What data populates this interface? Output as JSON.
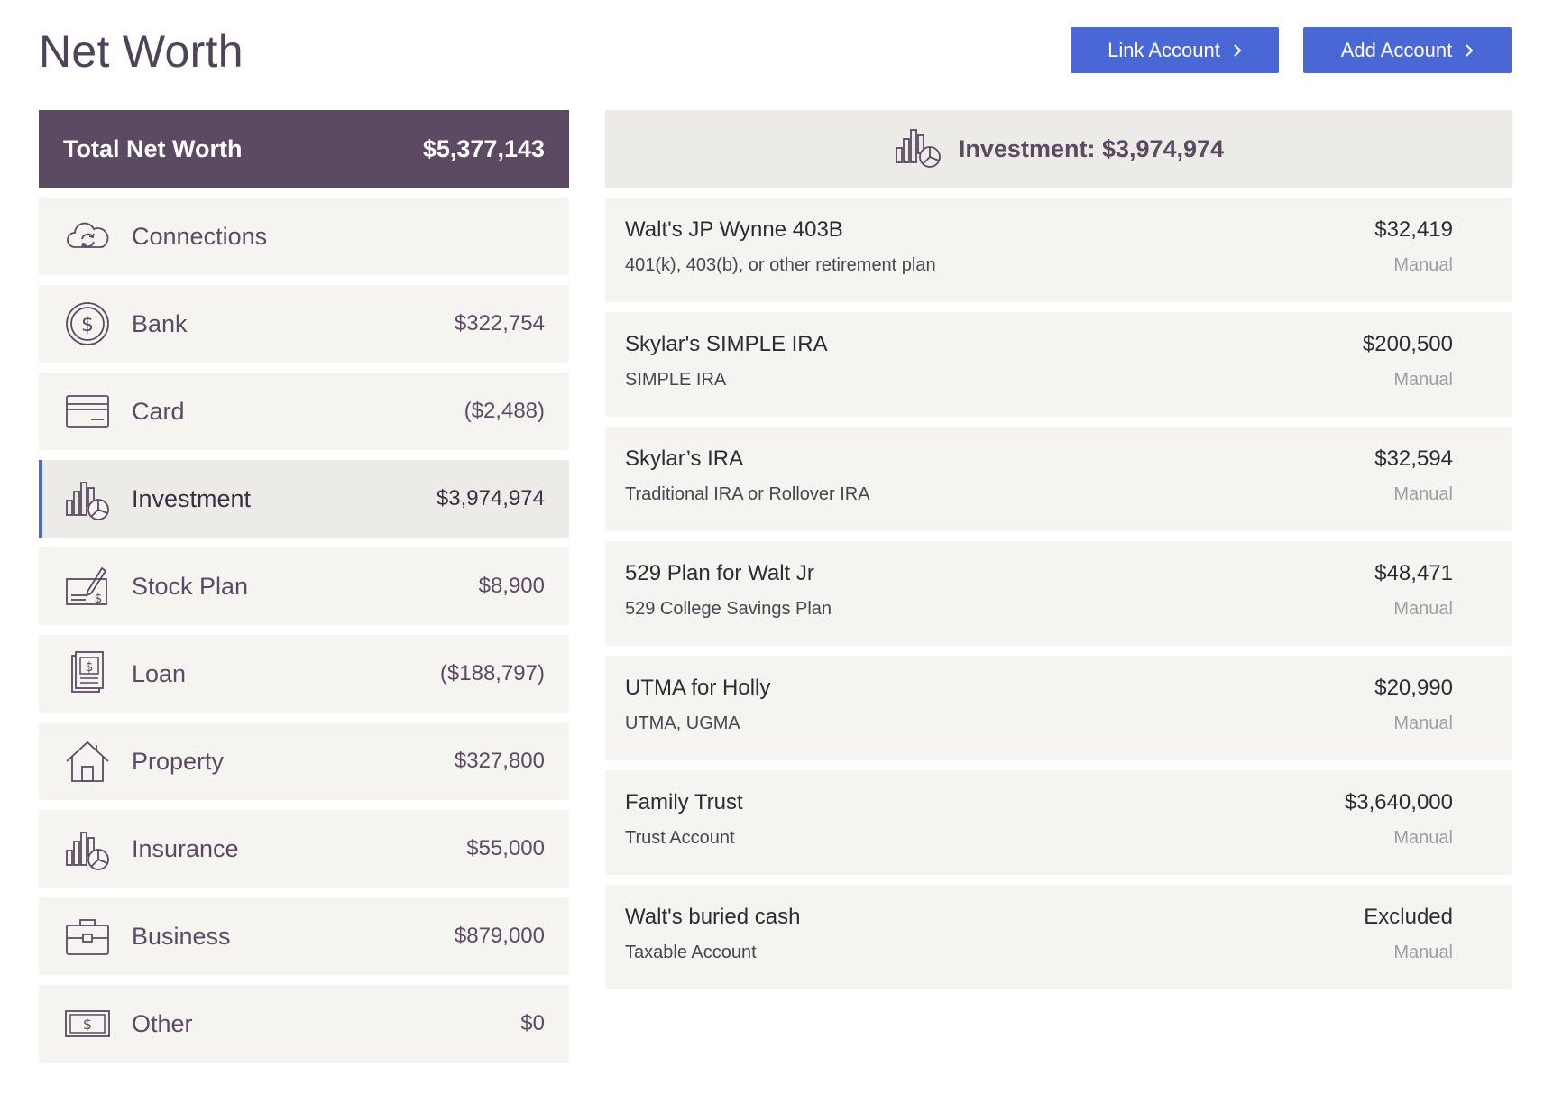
{
  "page": {
    "title": "Net Worth"
  },
  "actions": {
    "link_label": "Link Account",
    "add_label": "Add Account"
  },
  "total": {
    "label": "Total Net Worth",
    "value": "$5,377,143"
  },
  "categories": [
    {
      "label": "Connections",
      "value": "",
      "icon": "cloud-sync-icon"
    },
    {
      "label": "Bank",
      "value": "$322,754",
      "icon": "dollar-coin-icon"
    },
    {
      "label": "Card",
      "value": "($2,488)",
      "icon": "credit-card-icon"
    },
    {
      "label": "Investment",
      "value": "$3,974,974",
      "icon": "bar-pie-chart-icon",
      "active": true
    },
    {
      "label": "Stock Plan",
      "value": "$8,900",
      "icon": "signed-check-icon"
    },
    {
      "label": "Loan",
      "value": "($188,797)",
      "icon": "loan-document-icon"
    },
    {
      "label": "Property",
      "value": "$327,800",
      "icon": "house-icon"
    },
    {
      "label": "Insurance",
      "value": "$55,000",
      "icon": "bar-pie-chart-icon"
    },
    {
      "label": "Business",
      "value": "$879,000",
      "icon": "briefcase-icon"
    },
    {
      "label": "Other",
      "value": "$0",
      "icon": "cash-bill-icon"
    }
  ],
  "detail": {
    "header": "Investment: $3,974,974",
    "icon": "bar-pie-chart-icon",
    "accounts": [
      {
        "name": "Walt's JP Wynne 403B",
        "type": "401(k), 403(b), or other retirement plan",
        "amount": "$32,419",
        "status": "Manual"
      },
      {
        "name": "Skylar's SIMPLE IRA",
        "type": "SIMPLE IRA",
        "amount": "$200,500",
        "status": "Manual"
      },
      {
        "name": "Skylar’s IRA",
        "type": "Traditional IRA or Rollover IRA",
        "amount": "$32,594",
        "status": "Manual"
      },
      {
        "name": "529 Plan for Walt Jr",
        "type": "529 College Savings Plan",
        "amount": "$48,471",
        "status": "Manual"
      },
      {
        "name": "UTMA for Holly",
        "type": "UTMA, UGMA",
        "amount": "$20,990",
        "status": "Manual"
      },
      {
        "name": "Family Trust",
        "type": "Trust Account",
        "amount": "$3,640,000",
        "status": "Manual"
      },
      {
        "name": "Walt's buried cash",
        "type": "Taxable Account",
        "amount": "Excluded",
        "status": "Manual"
      }
    ]
  },
  "colors": {
    "accent": "#4a67d6",
    "total_bg": "#5b4a62",
    "card_bg": "#f5f4f1",
    "header_bg": "#ecebe7"
  }
}
